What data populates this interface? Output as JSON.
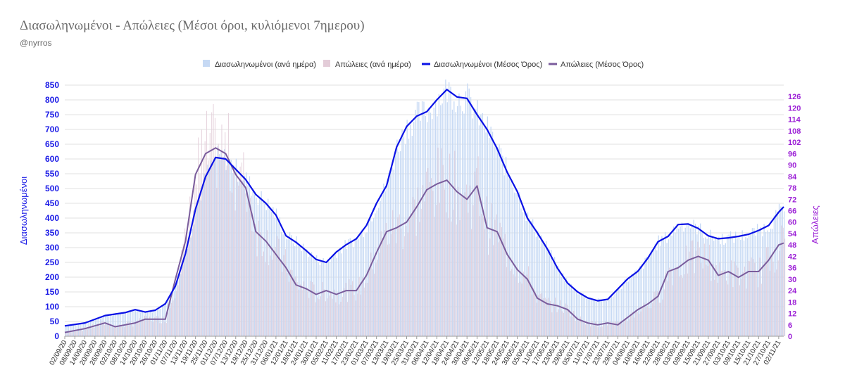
{
  "title": "Διασωληνωμένοι - Απώλειες (Μέσοι όροι, κυλιόμενοι 7ημερου)",
  "subtitle": "@nyrros",
  "colors": {
    "intubated_daily": "#c6d9f4",
    "deaths_daily": "#e3ccd8",
    "intubated_avg": "#0a12e6",
    "deaths_avg": "#7a5c9c",
    "left_axis": "#1a1ae6",
    "right_axis": "#9b1fd6",
    "grid": "#e2e2e2"
  },
  "chart_data": {
    "type": "bar+line",
    "x_tick_labels": [
      "02/09/20",
      "08/09/20",
      "14/09/20",
      "20/09/20",
      "26/09/20",
      "02/10/20",
      "08/10/20",
      "14/10/20",
      "20/10/20",
      "26/10/20",
      "01/11/20",
      "07/11/20",
      "13/11/20",
      "19/11/20",
      "25/11/20",
      "01/12/20",
      "07/12/20",
      "13/12/20",
      "19/12/20",
      "25/12/20",
      "31/12/20",
      "06/01/21",
      "12/01/21",
      "18/01/21",
      "24/01/21",
      "30/01/21",
      "05/02/21",
      "11/02/21",
      "17/02/21",
      "23/02/21",
      "01/03/21",
      "07/03/21",
      "13/03/21",
      "19/03/21",
      "25/03/21",
      "31/03/21",
      "06/04/21",
      "12/04/21",
      "18/04/21",
      "24/04/21",
      "30/04/21",
      "06/05/21",
      "12/05/21",
      "18/05/21",
      "24/05/21",
      "30/05/21",
      "05/06/21",
      "11/06/21",
      "17/06/21",
      "23/06/21",
      "29/06/21",
      "05/07/21",
      "11/07/21",
      "17/07/21",
      "23/07/21",
      "29/07/21",
      "04/08/21",
      "10/08/21",
      "16/08/21",
      "22/08/21",
      "28/08/21",
      "03/09/21",
      "09/09/21",
      "15/09/21",
      "21/09/21",
      "27/09/21",
      "03/10/21",
      "09/10/21",
      "15/10/21",
      "21/10/21",
      "27/10/21",
      "02/11/21"
    ],
    "x_start": "02/09/20",
    "x_end": "05/11/21",
    "left_axis": {
      "label": "Διασωληνωμένοι",
      "min": 0,
      "max": 850,
      "ticks": [
        0,
        50,
        100,
        150,
        200,
        250,
        300,
        350,
        400,
        450,
        500,
        550,
        600,
        650,
        700,
        750,
        800,
        850
      ]
    },
    "right_axis": {
      "label": "Απώλειες",
      "min": 0,
      "max": 132,
      "ticks": [
        0,
        6,
        12,
        18,
        24,
        30,
        36,
        42,
        48,
        54,
        60,
        66,
        72,
        78,
        84,
        90,
        96,
        102,
        108,
        114,
        120,
        126
      ]
    },
    "legend_position": "top-center",
    "grid": true,
    "series": [
      {
        "name": "Διασωληνωμένοι (ανά ημέρα)",
        "kind": "bar",
        "axis": "left"
      },
      {
        "name": "Απώλειες (ανά ημέρα)",
        "kind": "bar",
        "axis": "right"
      },
      {
        "name": "Διασωληνωμένοι (Μέσος Όρος)",
        "kind": "line",
        "axis": "left"
      },
      {
        "name": "Απώλειες (Μέσος Όρος)",
        "kind": "line",
        "axis": "right"
      }
    ],
    "intubated_avg": [
      [
        "02/09/20",
        35
      ],
      [
        "14/09/20",
        45
      ],
      [
        "26/09/20",
        70
      ],
      [
        "08/10/20",
        80
      ],
      [
        "14/10/20",
        90
      ],
      [
        "20/10/20",
        82
      ],
      [
        "26/10/20",
        88
      ],
      [
        "01/11/20",
        110
      ],
      [
        "07/11/20",
        170
      ],
      [
        "13/11/20",
        280
      ],
      [
        "19/11/20",
        430
      ],
      [
        "25/11/20",
        540
      ],
      [
        "01/12/20",
        605
      ],
      [
        "07/12/20",
        600
      ],
      [
        "13/12/20",
        565
      ],
      [
        "19/12/20",
        530
      ],
      [
        "25/12/20",
        480
      ],
      [
        "31/12/20",
        450
      ],
      [
        "06/01/21",
        410
      ],
      [
        "12/01/21",
        340
      ],
      [
        "18/01/21",
        318
      ],
      [
        "24/01/21",
        290
      ],
      [
        "30/01/21",
        260
      ],
      [
        "05/02/21",
        250
      ],
      [
        "11/02/21",
        285
      ],
      [
        "17/02/21",
        310
      ],
      [
        "23/02/21",
        330
      ],
      [
        "01/03/21",
        375
      ],
      [
        "07/03/21",
        450
      ],
      [
        "13/03/21",
        510
      ],
      [
        "19/03/21",
        640
      ],
      [
        "25/03/21",
        710
      ],
      [
        "31/03/21",
        745
      ],
      [
        "06/04/21",
        760
      ],
      [
        "12/04/21",
        800
      ],
      [
        "18/04/21",
        835
      ],
      [
        "24/04/21",
        810
      ],
      [
        "30/04/21",
        805
      ],
      [
        "06/05/21",
        750
      ],
      [
        "12/05/21",
        700
      ],
      [
        "18/05/21",
        635
      ],
      [
        "24/05/21",
        555
      ],
      [
        "30/05/21",
        490
      ],
      [
        "05/06/21",
        400
      ],
      [
        "11/06/21",
        350
      ],
      [
        "17/06/21",
        295
      ],
      [
        "23/06/21",
        230
      ],
      [
        "29/06/21",
        180
      ],
      [
        "05/07/21",
        150
      ],
      [
        "11/07/21",
        130
      ],
      [
        "17/07/21",
        120
      ],
      [
        "23/07/21",
        125
      ],
      [
        "29/07/21",
        160
      ],
      [
        "04/08/21",
        195
      ],
      [
        "10/08/21",
        220
      ],
      [
        "16/08/21",
        265
      ],
      [
        "22/08/21",
        320
      ],
      [
        "28/08/21",
        338
      ],
      [
        "03/09/21",
        378
      ],
      [
        "09/09/21",
        380
      ],
      [
        "15/09/21",
        365
      ],
      [
        "21/09/21",
        340
      ],
      [
        "27/09/21",
        330
      ],
      [
        "03/10/21",
        333
      ],
      [
        "09/10/21",
        338
      ],
      [
        "15/10/21",
        345
      ],
      [
        "21/10/21",
        358
      ],
      [
        "27/10/21",
        375
      ],
      [
        "02/11/21",
        420
      ],
      [
        "05/11/21",
        438
      ]
    ],
    "deaths_avg": [
      [
        "02/09/20",
        2
      ],
      [
        "14/09/20",
        4
      ],
      [
        "26/09/20",
        7
      ],
      [
        "02/10/20",
        5
      ],
      [
        "08/10/20",
        6
      ],
      [
        "14/10/20",
        7
      ],
      [
        "20/10/20",
        9
      ],
      [
        "26/10/20",
        9
      ],
      [
        "01/11/20",
        9
      ],
      [
        "07/11/20",
        30
      ],
      [
        "13/11/20",
        50
      ],
      [
        "19/11/20",
        85
      ],
      [
        "25/11/20",
        96
      ],
      [
        "01/12/20",
        99
      ],
      [
        "07/12/20",
        96
      ],
      [
        "13/12/20",
        85
      ],
      [
        "19/12/20",
        78
      ],
      [
        "25/12/20",
        55
      ],
      [
        "31/12/20",
        50
      ],
      [
        "06/01/21",
        43
      ],
      [
        "12/01/21",
        36
      ],
      [
        "18/01/21",
        27
      ],
      [
        "24/01/21",
        25
      ],
      [
        "30/01/21",
        22
      ],
      [
        "05/02/21",
        24
      ],
      [
        "11/02/21",
        22
      ],
      [
        "17/02/21",
        24
      ],
      [
        "23/02/21",
        24
      ],
      [
        "01/03/21",
        32
      ],
      [
        "07/03/21",
        44
      ],
      [
        "13/03/21",
        55
      ],
      [
        "19/03/21",
        57
      ],
      [
        "25/03/21",
        60
      ],
      [
        "31/03/21",
        68
      ],
      [
        "06/04/21",
        77
      ],
      [
        "12/04/21",
        80
      ],
      [
        "18/04/21",
        82
      ],
      [
        "24/04/21",
        76
      ],
      [
        "30/04/21",
        72
      ],
      [
        "06/05/21",
        79
      ],
      [
        "12/05/21",
        57
      ],
      [
        "18/05/21",
        55
      ],
      [
        "24/05/21",
        43
      ],
      [
        "30/05/21",
        35
      ],
      [
        "05/06/21",
        30
      ],
      [
        "11/06/21",
        20
      ],
      [
        "17/06/21",
        17
      ],
      [
        "23/06/21",
        16
      ],
      [
        "29/06/21",
        14
      ],
      [
        "05/07/21",
        9
      ],
      [
        "11/07/21",
        7
      ],
      [
        "17/07/21",
        6
      ],
      [
        "23/07/21",
        7
      ],
      [
        "29/07/21",
        6
      ],
      [
        "04/08/21",
        10
      ],
      [
        "10/08/21",
        14
      ],
      [
        "16/08/21",
        17
      ],
      [
        "22/08/21",
        21
      ],
      [
        "28/08/21",
        34
      ],
      [
        "03/09/21",
        36
      ],
      [
        "09/09/21",
        40
      ],
      [
        "15/09/21",
        42
      ],
      [
        "21/09/21",
        40
      ],
      [
        "27/09/21",
        32
      ],
      [
        "03/10/21",
        34
      ],
      [
        "09/10/21",
        31
      ],
      [
        "15/10/21",
        34
      ],
      [
        "21/10/21",
        34
      ],
      [
        "27/10/21",
        40
      ],
      [
        "02/11/21",
        48
      ],
      [
        "05/11/21",
        49
      ]
    ],
    "daily_bars_note_removed": true
  }
}
